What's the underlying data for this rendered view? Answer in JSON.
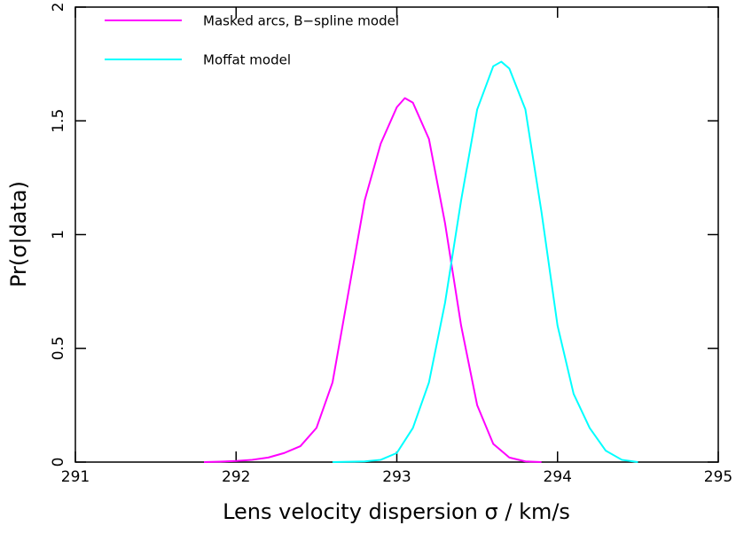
{
  "chart_data": {
    "type": "line",
    "xlabel": "Lens velocity dispersion σ / km/s",
    "ylabel": "Pr(σ|data)",
    "xlim": [
      291,
      295
    ],
    "ylim": [
      0,
      2
    ],
    "xticks": [
      291,
      292,
      293,
      294,
      295
    ],
    "yticks": [
      0,
      0.5,
      1,
      1.5,
      2
    ],
    "legend": "upper left",
    "series": [
      {
        "name": "Masked arcs, B−spline model",
        "color": "#ff00ff",
        "x": [
          291.8,
          291.9,
          292.0,
          292.1,
          292.2,
          292.3,
          292.4,
          292.5,
          292.6,
          292.7,
          292.8,
          292.9,
          293.0,
          293.05,
          293.1,
          293.2,
          293.3,
          293.4,
          293.5,
          293.6,
          293.7,
          293.8,
          293.9
        ],
        "values": [
          0,
          0.002,
          0.005,
          0.01,
          0.02,
          0.04,
          0.07,
          0.15,
          0.35,
          0.75,
          1.15,
          1.4,
          1.56,
          1.6,
          1.58,
          1.42,
          1.05,
          0.6,
          0.25,
          0.08,
          0.02,
          0.003,
          0
        ]
      },
      {
        "name": "Moffat model",
        "color": "#00ffff",
        "x": [
          292.6,
          292.8,
          292.9,
          293.0,
          293.1,
          293.2,
          293.3,
          293.4,
          293.5,
          293.6,
          293.65,
          293.7,
          293.8,
          293.9,
          294.0,
          294.1,
          294.2,
          294.3,
          294.4,
          294.5
        ],
        "values": [
          0,
          0.003,
          0.01,
          0.04,
          0.15,
          0.35,
          0.7,
          1.15,
          1.55,
          1.74,
          1.76,
          1.73,
          1.55,
          1.1,
          0.6,
          0.3,
          0.15,
          0.05,
          0.01,
          0
        ]
      }
    ]
  }
}
